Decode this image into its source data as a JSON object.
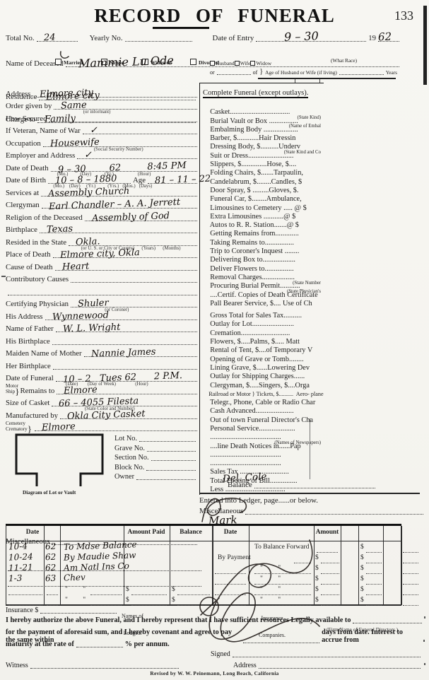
{
  "page": {
    "title": "RECORD OF FUNERAL",
    "number": "133",
    "revised": "Revised by W. W. Peinemann, Long Beach, California"
  },
  "top": {
    "total_no": {
      "label": "Total No.",
      "value": "24"
    },
    "yearly_no": {
      "label": "Yearly No.",
      "value": ""
    },
    "date_of_entry": {
      "label": "Date of Entry",
      "value": "9 – 30",
      "year_prefix": "19",
      "year_value": "62"
    },
    "name": {
      "label": "Name of Deceased",
      "value": "Mammie Lu Ode"
    },
    "marital_options": [
      "Married",
      "Single",
      "Widowed",
      "Divorced"
    ],
    "race_label": "(What Race)",
    "residence": {
      "label": "Residence",
      "value": "Elmore city"
    },
    "charge_to": {
      "label": "Charge to",
      "value": "Family"
    },
    "spouse": {
      "checkboxes": [
        "Husband",
        "Wife",
        "Widow"
      ],
      "or_label": "or",
      "of_label": "of",
      "age_label": "Age of Husband or Wife (if living)",
      "years_label": "Years"
    }
  },
  "fields": [
    {
      "label": "Address",
      "value": "Elmore city"
    },
    {
      "label": "Order given by",
      "value": "Same",
      "sub": "                      (or informant)"
    },
    {
      "label": "How Secured",
      "value": ""
    },
    {
      "label": "If Veteran, Name of War",
      "value": "✓"
    },
    {
      "label": "Occupation",
      "value": "Housewife",
      "sub": "                                        (Social Security Number)"
    },
    {
      "label": "Employer and Address",
      "value": "✓"
    },
    {
      "label": "Date of Death",
      "value": "9 – 30        62         8:45 PM",
      "sub": "   (Mo.)          (Day)           (Yr.)                    (Hour)"
    },
    {
      "label": "Date of Birth",
      "value": "10 – 8 – 1880",
      "label2": "Age",
      "value2": "81 – 11 – 22",
      "sub": "  (Mo.)    (Day)     (Yr.)          (Yrs.)   (Mos.)   (Days)"
    },
    {
      "label": "Services at",
      "value": "Assembly Church"
    },
    {
      "label": "Clergyman",
      "value": "Earl Chandler – A. A. Jerrett"
    },
    {
      "label": "Religion of the Deceased",
      "value": "Assembly of God"
    },
    {
      "label": "Birthplace",
      "value": "Texas"
    },
    {
      "label": "Resided in the State",
      "value": "Okla.",
      "sub": "        (or U. S. or City or County)      (Years)      (Months)"
    },
    {
      "label": "Place of Death",
      "value": "Elmore city, Okla"
    },
    {
      "label": "Cause of Death",
      "value": "Heart"
    },
    {
      "label": "Contributory Causes",
      "value": ""
    },
    {
      "label": "",
      "value": ""
    },
    {
      "label": "Certifying Physician",
      "value": "Shuler",
      "sub": "                          (or Coroner)"
    },
    {
      "label": "His Address",
      "value": "Wynnewood"
    },
    {
      "label": "Name of Father",
      "value": "W. L. Wright"
    },
    {
      "label": "His Birthplace",
      "value": ""
    },
    {
      "label": "Maiden Name of Mother",
      "value": "Nannie James"
    },
    {
      "label": "Her Birthplace",
      "value": ""
    },
    {
      "label": "Date of Funeral",
      "value": "10 – 2   Tues 62      2 P.M.",
      "sub": "      (Date)        (Day of Week)                (Hour)"
    },
    {
      "stack": "Motor\nShip",
      "label": "Remains to",
      "value": "Elmore"
    },
    {
      "label": "Size of Casket",
      "value": "66 – 4055 Filesta",
      "sub": "                         (State Color and Number)"
    },
    {
      "label": "Manufactured by",
      "value": "Okla City Casket"
    },
    {
      "stack": "Cemetery\nCrematory",
      "label": "",
      "value": "Elmore"
    }
  ],
  "diagram_caption": "Diagram of Lot or Vault",
  "lot_fields": [
    "Lot No.",
    "Grave No.",
    "Section No.",
    "Block No.",
    "Owner"
  ],
  "misc_label": "Miscellaneous",
  "price_list": {
    "title": "Complete Funeral (except outlays).",
    "items": [
      {
        "t": "Casket................................."
      },
      {
        "t": "Burial Vault or Box ................",
        "s": "(State Kind)"
      },
      {
        "t": "Embalming Body ...................",
        "s": "(Name of Embal"
      },
      {
        "t": "Barber, $............Hair Dressin"
      },
      {
        "t": "Dressing Body, $..........Underv"
      },
      {
        "t": "Suit or Dress.........................",
        "s": "(State Kind and Co"
      },
      {
        "t": "Slippers, $..............Hose, $...."
      },
      {
        "t": "Folding Chairs, $.......Tarpaulin,"
      },
      {
        "t": "Candelabrum, $........Candles, $"
      },
      {
        "t": "Door Spray, $ .........Gloves, $."
      },
      {
        "t": "Funeral Car, $........Ambulance,"
      },
      {
        "t": "Limousines to Cemetery ..... @ $"
      },
      {
        "t": "Extra Limousines ...........@ $"
      },
      {
        "t": "Autos to R. R. Station.......@ $"
      },
      {
        "t": "Getting Remains from............."
      },
      {
        "t": "Taking Remains to................"
      },
      {
        "t": "Trip to Coroner's Inquest ........"
      },
      {
        "t": "Delivering Box to.................."
      },
      {
        "t": "Deliver Flowers to................"
      },
      {
        "t": "Removal Charges.................."
      },
      {
        "t": "Procuring Burial Permit...........",
        "s": "(State Number"
      },
      {
        "t": "....Certif. Copies of Death Certificate",
        "s": "(State Physician's"
      },
      {
        "t": "Pall Bearer Service, $.... Use of Ch"
      },
      {
        "t": "Gross Total for Sales Tax..........",
        "g": true
      },
      {
        "t": "Outlay for Lot......................."
      },
      {
        "t": "Cremation..........................."
      },
      {
        "t": "Flowers, $.....Palms, $..... Matt"
      },
      {
        "t": "Rental of Tent, $....of Temporary V"
      },
      {
        "t": "Opening of Grave or Tomb........"
      },
      {
        "t": "Lining Grave, $......Lowering Dev"
      },
      {
        "t": "Outlay for Shipping Charges......"
      },
      {
        "t": "Clergyman, $.....Singers, $....Orga"
      },
      {
        "t": "Railroad or Motor } Tickets, $..........  Aero- plane Ser",
        "cls": "small"
      },
      {
        "t": "Telegr., Phone, Cable or Radio Char"
      },
      {
        "t": "Cash Advanced....................."
      },
      {
        "t": "Out of town Funeral Director's Cha"
      },
      {
        "t": "Personal Service...................."
      },
      {
        "t": "......................................."
      },
      {
        "t": "....line Death Notices in......Pap",
        "s": "(Names of Newspapers)"
      },
      {
        "t": "......................................."
      },
      {
        "t": "......................................."
      },
      {
        "t": "Sales Tax ..........................."
      },
      {
        "t": "Total Footing of Bill..............."
      },
      {
        "t": "Less .................................",
        "hw": "Del. Cole"
      }
    ]
  },
  "totals": {
    "balance_label": "Balance",
    "entered_label": "Entered into Ledger, page......or below.",
    "misc_label": "Miscellaneous",
    "hw_mark": "Mark"
  },
  "pay_table": {
    "headers": {
      "date": "Date",
      "amount_paid": "Amount Paid",
      "balance": "Balance",
      "date2": "Date",
      "amount": "Amount"
    },
    "left_rows": [
      {
        "d": "10-4",
        "y": "62",
        "t": "To Mdse Balance"
      },
      {
        "d": "10-24",
        "y": "62",
        "t": "By Maudie Shaw"
      },
      {
        "d": "11-21",
        "y": "62",
        "t": "Am Natl Ins Co"
      },
      {
        "d": "1-3",
        "y": "63",
        "t": "Chev"
      },
      {
        "d": "",
        "y": "",
        "t": "\"         \"",
        "a": "$",
        "b": "$"
      },
      {
        "d": "",
        "y": "",
        "t": "\"         \"",
        "a": "$",
        "b": "$"
      }
    ],
    "right_rows": [
      {
        "t": "To Balance Forward",
        "b": "$"
      },
      {
        "t": "By Payment",
        "a": "$",
        "b": "$"
      },
      {
        "t": "\"         \"",
        "a": "$",
        "b": "$"
      },
      {
        "t": "\"         \"",
        "a": "$",
        "b": "$"
      },
      {
        "t": "\"         \"",
        "a": "$",
        "b": "$"
      },
      {
        "t": "\"         \"",
        "a": "$",
        "b": "$"
      }
    ]
  },
  "footer": {
    "insurance_label": "Insurance $",
    "lodges_top": "Names of",
    "lodges_bottom": "Lodges.",
    "companies_top": "Insurance",
    "companies_bottom": "Companies.",
    "legal_1": "I hereby authorize the above Funeral, and I hereby represent that I have sufficient resources Legally available to",
    "firm_sub": "(Firm Name of Funeral Directors.)",
    "legal_2a": "for the payment of aforesaid sum, and I hereby covenant and agree to pay the same within",
    "legal_2b": "days from date.   Interest to accrue from",
    "legal_3a": "maturity at the rate of",
    "legal_3b": "% per annum.",
    "signed_label": "Signed",
    "witness_label": "Witness",
    "address_label": "Address"
  }
}
